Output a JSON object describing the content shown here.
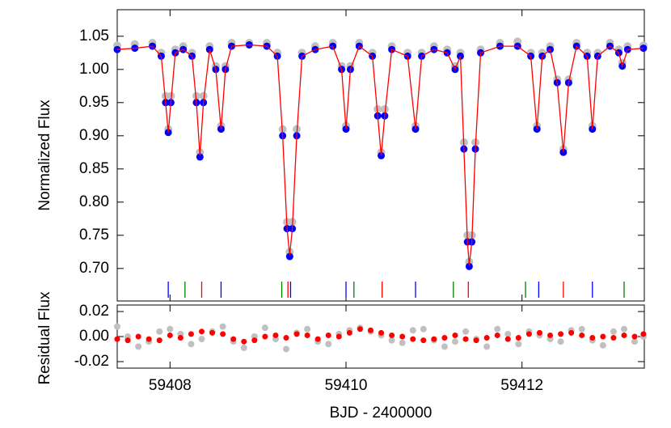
{
  "chart_data": [
    {
      "type": "scatter",
      "ylabel": "Normalized Flux",
      "x": [
        59407.4,
        59407.6,
        59407.8,
        59407.9,
        59407.95,
        59407.98,
        59408.01,
        59408.06,
        59408.15,
        59408.25,
        59408.3,
        59408.34,
        59408.38,
        59408.45,
        59408.52,
        59408.58,
        59408.63,
        59408.7,
        59408.9,
        59409.1,
        59409.22,
        59409.28,
        59409.33,
        59409.36,
        59409.39,
        59409.44,
        59409.5,
        59409.65,
        59409.85,
        59409.95,
        59410.0,
        59410.05,
        59410.15,
        59410.3,
        59410.36,
        59410.4,
        59410.44,
        59410.52,
        59410.7,
        59410.79,
        59410.86,
        59411.0,
        59411.15,
        59411.24,
        59411.3,
        59411.34,
        59411.38,
        59411.4,
        59411.43,
        59411.47,
        59411.53,
        59411.75,
        59411.95,
        59412.1,
        59412.17,
        59412.23,
        59412.32,
        59412.4,
        59412.47,
        59412.53,
        59412.62,
        59412.74,
        59412.8,
        59412.86,
        59413.0,
        59413.1,
        59413.14,
        59413.2,
        59413.38
      ],
      "series": [
        {
          "color": "#c0c0c0",
          "mode": "points",
          "values": [
            1.036,
            1.038,
            1.04,
            1.025,
            0.96,
            0.91,
            0.96,
            1.03,
            1.035,
            1.025,
            0.96,
            0.875,
            0.96,
            1.035,
            1.005,
            0.915,
            1.005,
            1.04,
            1.04,
            1.04,
            1.025,
            0.91,
            0.77,
            0.725,
            0.77,
            0.91,
            1.025,
            1.035,
            1.04,
            1.005,
            0.915,
            1.005,
            1.04,
            1.025,
            0.94,
            0.875,
            0.94,
            1.035,
            1.025,
            0.915,
            1.025,
            1.035,
            1.03,
            1.005,
            1.025,
            0.89,
            0.75,
            0.71,
            0.75,
            0.89,
            1.03,
            1.04,
            1.042,
            1.025,
            0.915,
            1.025,
            1.035,
            0.985,
            0.88,
            0.985,
            1.04,
            1.025,
            0.915,
            1.025,
            1.04,
            1.03,
            1.01,
            1.035,
            1.036
          ]
        },
        {
          "color": "#0000ff",
          "mode": "points",
          "values": [
            1.03,
            1.032,
            1.035,
            1.02,
            0.95,
            0.905,
            0.95,
            1.025,
            1.03,
            1.02,
            0.95,
            0.868,
            0.95,
            1.03,
            1.0,
            0.91,
            1.0,
            1.035,
            1.037,
            1.035,
            1.02,
            0.9,
            0.76,
            0.718,
            0.76,
            0.9,
            1.02,
            1.03,
            1.035,
            1.0,
            0.91,
            1.0,
            1.035,
            1.02,
            0.93,
            0.87,
            0.93,
            1.03,
            1.02,
            0.91,
            1.02,
            1.03,
            1.025,
            1.0,
            1.02,
            0.88,
            0.74,
            0.703,
            0.74,
            0.88,
            1.025,
            1.035,
            1.035,
            1.02,
            0.91,
            1.02,
            1.03,
            0.98,
            0.875,
            0.98,
            1.035,
            1.02,
            0.91,
            1.02,
            1.035,
            1.025,
            1.005,
            1.03,
            1.032
          ]
        },
        {
          "color": "#ff0000",
          "mode": "line",
          "values": [
            1.03,
            1.032,
            1.035,
            1.02,
            0.95,
            0.905,
            0.95,
            1.025,
            1.03,
            1.02,
            0.95,
            0.87,
            0.95,
            1.03,
            1.0,
            0.91,
            1.0,
            1.035,
            1.037,
            1.035,
            1.02,
            0.9,
            0.76,
            0.72,
            0.76,
            0.9,
            1.02,
            1.03,
            1.035,
            1.0,
            0.91,
            1.0,
            1.035,
            1.02,
            0.93,
            0.87,
            0.93,
            1.03,
            1.02,
            0.91,
            1.02,
            1.03,
            1.025,
            1.0,
            1.02,
            0.88,
            0.74,
            0.705,
            0.74,
            0.88,
            1.025,
            1.035,
            1.035,
            1.02,
            0.91,
            1.02,
            1.03,
            0.98,
            0.875,
            0.98,
            1.035,
            1.02,
            0.91,
            1.02,
            1.035,
            1.025,
            1.005,
            1.03,
            1.032
          ]
        }
      ],
      "markers": [
        {
          "color": "#0000ff",
          "x": [
            59407.98,
            59408.58,
            59409.37,
            59410.0,
            59410.79,
            59412.19,
            59412.8
          ]
        },
        {
          "color": "#008000",
          "x": [
            59408.17,
            59409.27,
            59410.09,
            59411.22,
            59412.04,
            59413.16
          ]
        },
        {
          "color": "#ff0000",
          "x": [
            59408.36,
            59409.34,
            59410.41,
            59411.39,
            59412.47
          ]
        }
      ],
      "xlim": [
        59407.4,
        59413.39
      ],
      "ylim": [
        0.651,
        1.09
      ],
      "yticks": [
        {
          "value": 0.7,
          "label": "0.70"
        },
        0.75,
        {
          "value": 0.8,
          "label": "0.80"
        },
        0.85,
        {
          "value": 0.9,
          "label": "0.90"
        },
        0.95,
        {
          "value": 1.0,
          "label": "1.00"
        },
        1.05
      ]
    },
    {
      "type": "scatter",
      "ylabel": "Residual Flux",
      "xlabel": "BJD - 2400000",
      "x": [
        59407.4,
        59407.52,
        59407.64,
        59407.76,
        59407.88,
        59408.0,
        59408.12,
        59408.24,
        59408.36,
        59408.48,
        59408.6,
        59408.72,
        59408.84,
        59408.96,
        59409.08,
        59409.2,
        59409.32,
        59409.44,
        59409.56,
        59409.68,
        59409.8,
        59409.92,
        59410.04,
        59410.16,
        59410.28,
        59410.4,
        59410.52,
        59410.64,
        59410.76,
        59410.88,
        59411.0,
        59411.12,
        59411.24,
        59411.36,
        59411.48,
        59411.6,
        59411.72,
        59411.84,
        59411.96,
        59412.08,
        59412.2,
        59412.32,
        59412.44,
        59412.56,
        59412.68,
        59412.8,
        59412.92,
        59413.04,
        59413.16,
        59413.28,
        59413.38
      ],
      "series": [
        {
          "color": "#c0c0c0",
          "values": [
            0.008,
            0.0,
            -0.008,
            -0.004,
            0.004,
            0.006,
            0.002,
            -0.006,
            -0.002,
            0.004,
            0.008,
            -0.004,
            -0.009,
            0.0,
            0.007,
            -0.002,
            -0.01,
            0.003,
            0.006,
            -0.004,
            -0.006,
            0.002,
            0.005,
            0.007,
            0.004,
            0.001,
            -0.003,
            -0.005,
            0.005,
            0.006,
            -0.003,
            -0.008,
            -0.004,
            0.004,
            -0.002,
            -0.008,
            0.006,
            0.002,
            -0.006,
            0.004,
            0.001,
            -0.002,
            -0.004,
            0.005,
            0.006,
            -0.003,
            -0.007,
            0.004,
            0.006,
            -0.004,
            0.0
          ]
        },
        {
          "color": "#ff0000",
          "values": [
            -0.002,
            -0.003,
            0.0,
            -0.002,
            -0.003,
            0.001,
            -0.001,
            0.002,
            0.004,
            0.003,
            0.002,
            -0.002,
            -0.004,
            -0.003,
            0.0,
            0.001,
            -0.001,
            0.002,
            0.001,
            -0.002,
            0.001,
            0.0,
            0.003,
            0.006,
            0.005,
            0.003,
            0.001,
            0.0,
            -0.002,
            -0.003,
            -0.002,
            -0.001,
            0.001,
            -0.002,
            -0.003,
            -0.001,
            0.001,
            -0.002,
            -0.001,
            0.002,
            0.003,
            0.001,
            0.002,
            0.003,
            0.001,
            -0.001,
            0.0,
            -0.001,
            0.001,
            0.0,
            0.002
          ]
        }
      ],
      "xlim": [
        59407.4,
        59413.39
      ],
      "xticks": [
        59408,
        59410,
        59412
      ],
      "ylim": [
        -0.0252,
        0.0252
      ],
      "yticks": [
        -0.02,
        {
          "value": 0.0,
          "label": "0.00"
        },
        0.02
      ]
    }
  ]
}
